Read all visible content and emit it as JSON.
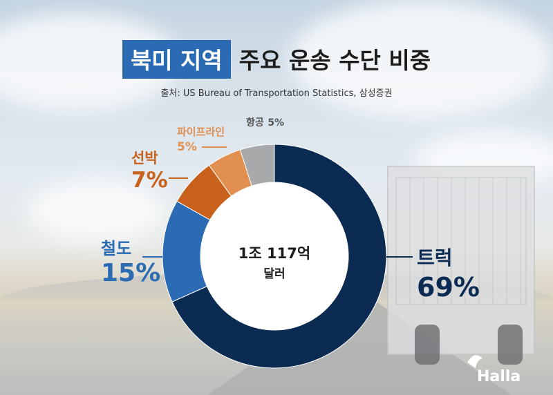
{
  "title": {
    "highlight": "북미 지역",
    "rest": "주요 운송 수단 비중"
  },
  "source": "출처: US Bureau of Transportation Statistics, 삼성증권",
  "center": {
    "line1": "1조 117억",
    "line2": "달러"
  },
  "brand": "Halla",
  "chart_data": {
    "type": "pie",
    "donut": true,
    "start_angle_deg": 0,
    "direction": "clockwise",
    "slices": [
      {
        "name": "트럭",
        "value": 69,
        "label": "69%",
        "color": "#0b2b52"
      },
      {
        "name": "철도",
        "value": 15,
        "label": "15%",
        "color": "#2a6bb3"
      },
      {
        "name": "선박",
        "value": 7,
        "label": "7%",
        "color": "#c8611b"
      },
      {
        "name": "파이프라인",
        "value": 5,
        "label": "5%",
        "color": "#e19051"
      },
      {
        "name": "항공",
        "value": 5,
        "label": "5%",
        "color": "#a8a9ab"
      }
    ]
  }
}
